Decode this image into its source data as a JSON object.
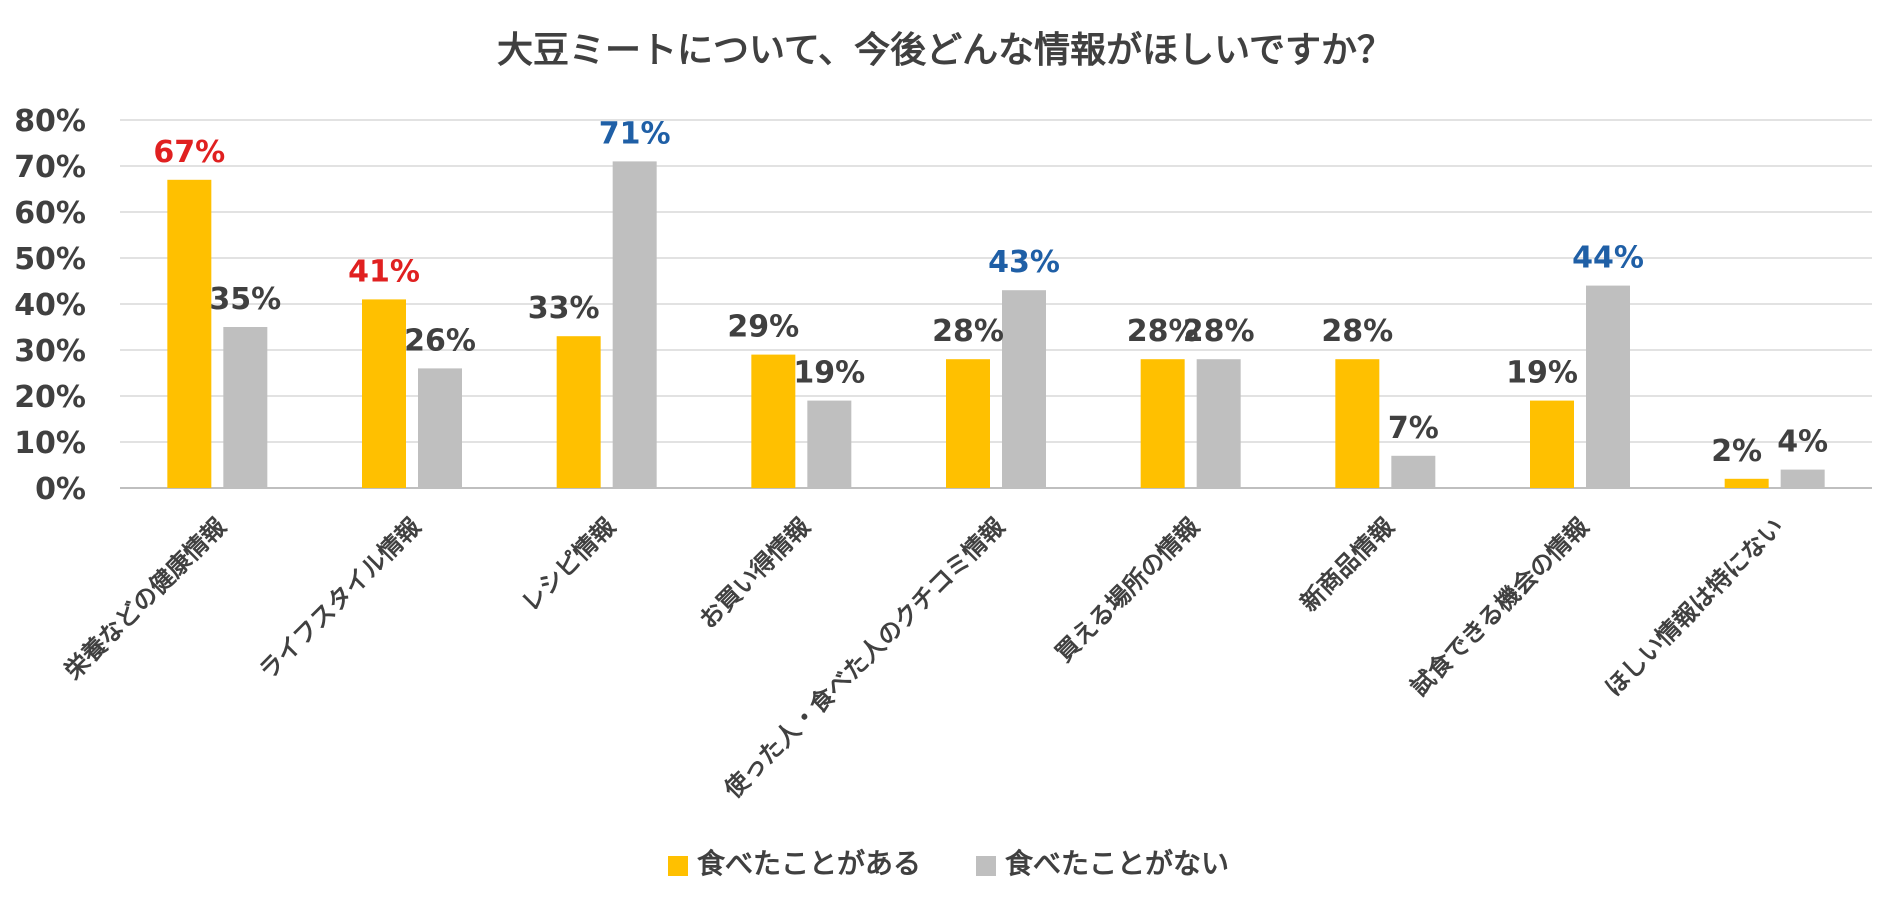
{
  "chart_data": {
    "type": "bar",
    "title": "大豆ミートについて、今後どんな情報がほしいですか？",
    "xlabel": "",
    "ylabel": "",
    "ylim": [
      0,
      80
    ],
    "yticks": [
      0,
      10,
      20,
      30,
      40,
      50,
      60,
      70,
      80
    ],
    "yticks_format": "percent",
    "grid": true,
    "legend": "bottom",
    "categories": [
      "栄養などの健康情報",
      "ライフスタイル情報",
      "レシピ情報",
      "お買い得情報",
      "使った人・食べた人のクチコミ情報",
      "買える場所の情報",
      "新商品情報",
      "試食できる機会の情報",
      "ほしい情報は特にない"
    ],
    "series": [
      {
        "name": "食べたことがある",
        "color": "#FFC000",
        "values": [
          67,
          41,
          33,
          29,
          28,
          28,
          28,
          19,
          2
        ],
        "labels": [
          "67%",
          "41%",
          "33%",
          "29%",
          "28%",
          "28%",
          "28%",
          "19%",
          "2%"
        ],
        "label_colors": [
          "#E02020",
          "#E02020",
          "#404040",
          "#404040",
          "#404040",
          "#404040",
          "#404040",
          "#404040",
          "#404040"
        ]
      },
      {
        "name": "食べたことがない",
        "color": "#BFBFBF",
        "values": [
          35,
          26,
          71,
          19,
          43,
          28,
          7,
          44,
          4
        ],
        "labels": [
          "35%",
          "26%",
          "71%",
          "19%",
          "43%",
          "28%",
          "7%",
          "44%",
          "4%"
        ],
        "label_colors": [
          "#404040",
          "#404040",
          "#1F5FA6",
          "#404040",
          "#1F5FA6",
          "#404040",
          "#404040",
          "#1F5FA6",
          "#404040"
        ]
      }
    ]
  },
  "colors": {
    "text": "#404040",
    "grid": "#D9D9D9",
    "highlight_red": "#E02020",
    "highlight_blue": "#1F5FA6"
  }
}
